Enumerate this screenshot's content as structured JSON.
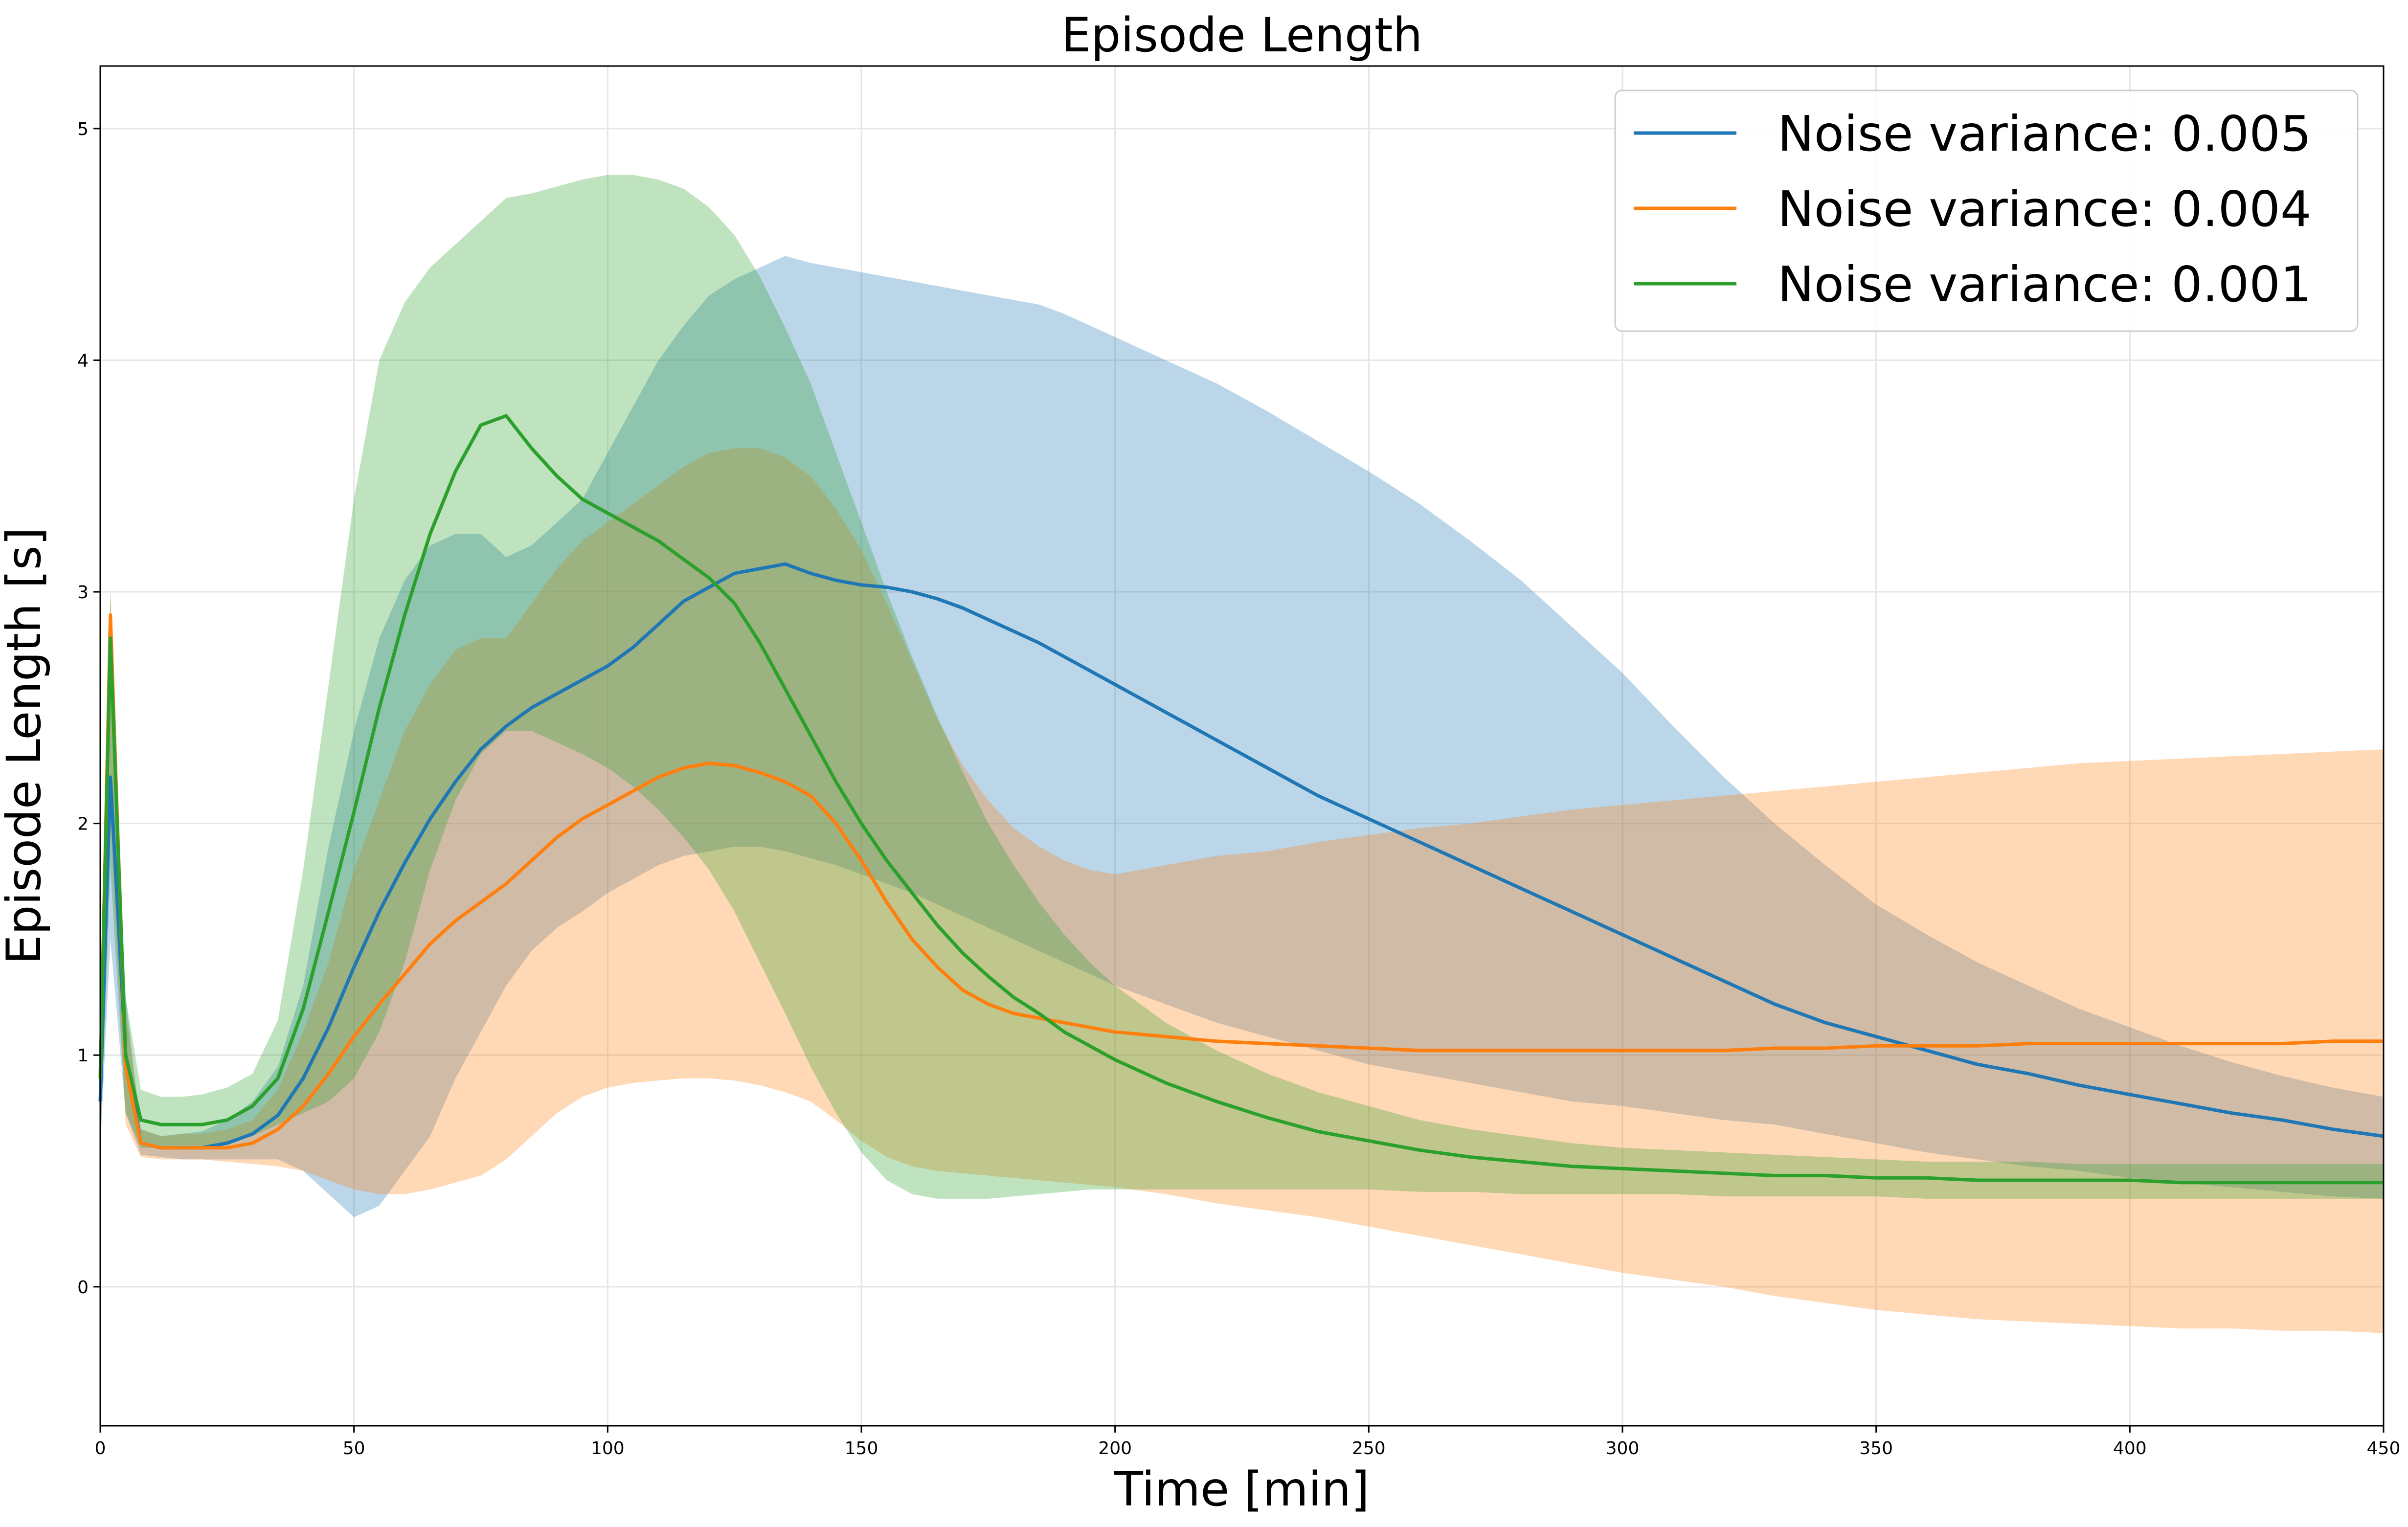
{
  "chart_data": {
    "type": "line",
    "title": "Episode Length",
    "xlabel": "Time [min]",
    "ylabel": "Episode Length [s]",
    "xlim": [
      0,
      450
    ],
    "ylim": [
      -0.6,
      5.27
    ],
    "xticks": [
      0,
      50,
      100,
      150,
      200,
      250,
      300,
      350,
      400,
      450
    ],
    "yticks": [
      0,
      1,
      2,
      3,
      4,
      5
    ],
    "grid": true,
    "legend_position": "top-right",
    "x": [
      0,
      2,
      5,
      8,
      12,
      16,
      20,
      25,
      30,
      35,
      40,
      45,
      50,
      55,
      60,
      65,
      70,
      75,
      80,
      85,
      90,
      95,
      100,
      105,
      110,
      115,
      120,
      125,
      130,
      135,
      140,
      145,
      150,
      155,
      160,
      165,
      170,
      175,
      180,
      185,
      190,
      195,
      200,
      210,
      220,
      230,
      240,
      250,
      260,
      270,
      280,
      290,
      300,
      310,
      320,
      330,
      340,
      350,
      360,
      370,
      380,
      390,
      400,
      410,
      420,
      430,
      440,
      450
    ],
    "series": [
      {
        "name": "Noise variance: 0.005",
        "color": "#1f77b4",
        "mean": [
          0.8,
          2.2,
          1.0,
          0.62,
          0.6,
          0.6,
          0.6,
          0.62,
          0.66,
          0.74,
          0.9,
          1.12,
          1.38,
          1.62,
          1.83,
          2.02,
          2.18,
          2.32,
          2.42,
          2.5,
          2.56,
          2.62,
          2.68,
          2.76,
          2.86,
          2.96,
          3.02,
          3.08,
          3.1,
          3.12,
          3.08,
          3.05,
          3.03,
          3.02,
          3.0,
          2.97,
          2.93,
          2.88,
          2.83,
          2.78,
          2.72,
          2.66,
          2.6,
          2.48,
          2.36,
          2.24,
          2.12,
          2.02,
          1.92,
          1.82,
          1.72,
          1.62,
          1.52,
          1.42,
          1.32,
          1.22,
          1.14,
          1.08,
          1.02,
          0.96,
          0.92,
          0.87,
          0.83,
          0.79,
          0.75,
          0.72,
          0.68,
          0.65
        ],
        "lower": [
          0.6,
          1.5,
          0.75,
          0.57,
          0.56,
          0.55,
          0.55,
          0.55,
          0.55,
          0.55,
          0.5,
          0.4,
          0.3,
          0.35,
          0.5,
          0.65,
          0.9,
          1.1,
          1.3,
          1.45,
          1.55,
          1.62,
          1.7,
          1.76,
          1.82,
          1.86,
          1.88,
          1.9,
          1.9,
          1.88,
          1.85,
          1.82,
          1.78,
          1.74,
          1.7,
          1.65,
          1.6,
          1.55,
          1.5,
          1.45,
          1.4,
          1.35,
          1.3,
          1.22,
          1.14,
          1.08,
          1.02,
          0.96,
          0.92,
          0.88,
          0.84,
          0.8,
          0.78,
          0.75,
          0.72,
          0.7,
          0.66,
          0.62,
          0.58,
          0.55,
          0.52,
          0.5,
          0.47,
          0.45,
          0.43,
          0.41,
          0.39,
          0.38
        ],
        "upper": [
          1.0,
          2.6,
          1.25,
          0.68,
          0.65,
          0.66,
          0.67,
          0.72,
          0.8,
          0.95,
          1.3,
          1.9,
          2.4,
          2.8,
          3.05,
          3.2,
          3.25,
          3.25,
          3.15,
          3.2,
          3.3,
          3.4,
          3.6,
          3.8,
          4.0,
          4.15,
          4.28,
          4.35,
          4.4,
          4.45,
          4.42,
          4.4,
          4.38,
          4.36,
          4.34,
          4.32,
          4.3,
          4.28,
          4.26,
          4.24,
          4.2,
          4.15,
          4.1,
          4.0,
          3.9,
          3.78,
          3.65,
          3.52,
          3.38,
          3.22,
          3.05,
          2.85,
          2.65,
          2.42,
          2.2,
          2.0,
          1.82,
          1.65,
          1.52,
          1.4,
          1.3,
          1.2,
          1.12,
          1.04,
          0.97,
          0.91,
          0.86,
          0.82
        ]
      },
      {
        "name": "Noise variance: 0.004",
        "color": "#ff7f0e",
        "mean": [
          0.9,
          2.9,
          0.95,
          0.62,
          0.6,
          0.6,
          0.6,
          0.6,
          0.62,
          0.68,
          0.78,
          0.92,
          1.08,
          1.22,
          1.35,
          1.48,
          1.58,
          1.66,
          1.74,
          1.84,
          1.94,
          2.02,
          2.08,
          2.14,
          2.2,
          2.24,
          2.26,
          2.25,
          2.22,
          2.18,
          2.12,
          2.0,
          1.84,
          1.66,
          1.5,
          1.38,
          1.28,
          1.22,
          1.18,
          1.16,
          1.14,
          1.12,
          1.1,
          1.08,
          1.06,
          1.05,
          1.04,
          1.03,
          1.02,
          1.02,
          1.02,
          1.02,
          1.02,
          1.02,
          1.02,
          1.03,
          1.03,
          1.04,
          1.04,
          1.04,
          1.05,
          1.05,
          1.05,
          1.05,
          1.05,
          1.05,
          1.06,
          1.06
        ],
        "lower": [
          0.6,
          2.0,
          0.7,
          0.56,
          0.55,
          0.55,
          0.55,
          0.54,
          0.53,
          0.52,
          0.5,
          0.46,
          0.42,
          0.4,
          0.4,
          0.42,
          0.45,
          0.48,
          0.55,
          0.65,
          0.75,
          0.82,
          0.86,
          0.88,
          0.89,
          0.9,
          0.9,
          0.89,
          0.87,
          0.84,
          0.8,
          0.72,
          0.63,
          0.56,
          0.52,
          0.5,
          0.49,
          0.48,
          0.47,
          0.46,
          0.45,
          0.44,
          0.43,
          0.4,
          0.36,
          0.33,
          0.3,
          0.26,
          0.22,
          0.18,
          0.14,
          0.1,
          0.06,
          0.03,
          0.0,
          -0.04,
          -0.07,
          -0.1,
          -0.12,
          -0.14,
          -0.15,
          -0.16,
          -0.17,
          -0.18,
          -0.18,
          -0.19,
          -0.19,
          -0.2
        ],
        "upper": [
          1.2,
          3.0,
          1.2,
          0.68,
          0.65,
          0.66,
          0.66,
          0.68,
          0.72,
          0.85,
          1.1,
          1.4,
          1.8,
          2.1,
          2.4,
          2.6,
          2.75,
          2.8,
          2.8,
          2.95,
          3.1,
          3.22,
          3.3,
          3.38,
          3.46,
          3.54,
          3.6,
          3.62,
          3.62,
          3.58,
          3.5,
          3.36,
          3.18,
          2.95,
          2.7,
          2.45,
          2.25,
          2.1,
          1.98,
          1.9,
          1.84,
          1.8,
          1.78,
          1.82,
          1.86,
          1.88,
          1.92,
          1.95,
          1.98,
          2.0,
          2.03,
          2.06,
          2.08,
          2.1,
          2.12,
          2.14,
          2.16,
          2.18,
          2.2,
          2.22,
          2.24,
          2.26,
          2.27,
          2.28,
          2.29,
          2.3,
          2.31,
          2.32
        ]
      },
      {
        "name": "Noise variance: 0.001",
        "color": "#2ca02c",
        "mean": [
          0.9,
          2.8,
          1.0,
          0.72,
          0.7,
          0.7,
          0.7,
          0.72,
          0.78,
          0.9,
          1.2,
          1.62,
          2.05,
          2.5,
          2.9,
          3.25,
          3.52,
          3.72,
          3.76,
          3.62,
          3.5,
          3.4,
          3.34,
          3.28,
          3.22,
          3.14,
          3.06,
          2.95,
          2.78,
          2.58,
          2.38,
          2.18,
          2.0,
          1.84,
          1.7,
          1.56,
          1.44,
          1.34,
          1.25,
          1.18,
          1.1,
          1.04,
          0.98,
          0.88,
          0.8,
          0.73,
          0.67,
          0.63,
          0.59,
          0.56,
          0.54,
          0.52,
          0.51,
          0.5,
          0.49,
          0.48,
          0.48,
          0.47,
          0.47,
          0.46,
          0.46,
          0.46,
          0.46,
          0.45,
          0.45,
          0.45,
          0.45,
          0.45
        ],
        "lower": [
          0.6,
          1.8,
          0.75,
          0.6,
          0.6,
          0.6,
          0.6,
          0.62,
          0.65,
          0.7,
          0.75,
          0.8,
          0.9,
          1.1,
          1.4,
          1.8,
          2.1,
          2.3,
          2.4,
          2.4,
          2.35,
          2.3,
          2.24,
          2.16,
          2.06,
          1.94,
          1.8,
          1.62,
          1.4,
          1.18,
          0.95,
          0.75,
          0.58,
          0.46,
          0.4,
          0.38,
          0.38,
          0.38,
          0.39,
          0.4,
          0.41,
          0.42,
          0.42,
          0.42,
          0.42,
          0.42,
          0.42,
          0.42,
          0.41,
          0.41,
          0.4,
          0.4,
          0.4,
          0.4,
          0.39,
          0.39,
          0.39,
          0.39,
          0.38,
          0.38,
          0.38,
          0.38,
          0.38,
          0.38,
          0.38,
          0.38,
          0.38,
          0.38
        ],
        "upper": [
          1.2,
          3.0,
          1.25,
          0.85,
          0.82,
          0.82,
          0.83,
          0.86,
          0.92,
          1.15,
          1.8,
          2.6,
          3.4,
          4.0,
          4.25,
          4.4,
          4.5,
          4.6,
          4.7,
          4.72,
          4.75,
          4.78,
          4.8,
          4.8,
          4.78,
          4.74,
          4.66,
          4.54,
          4.36,
          4.14,
          3.9,
          3.6,
          3.3,
          3.0,
          2.72,
          2.46,
          2.22,
          2.0,
          1.82,
          1.66,
          1.52,
          1.4,
          1.3,
          1.14,
          1.02,
          0.92,
          0.84,
          0.78,
          0.72,
          0.68,
          0.65,
          0.62,
          0.6,
          0.59,
          0.58,
          0.57,
          0.56,
          0.55,
          0.54,
          0.54,
          0.54,
          0.53,
          0.53,
          0.53,
          0.53,
          0.53,
          0.53,
          0.53
        ]
      }
    ]
  }
}
